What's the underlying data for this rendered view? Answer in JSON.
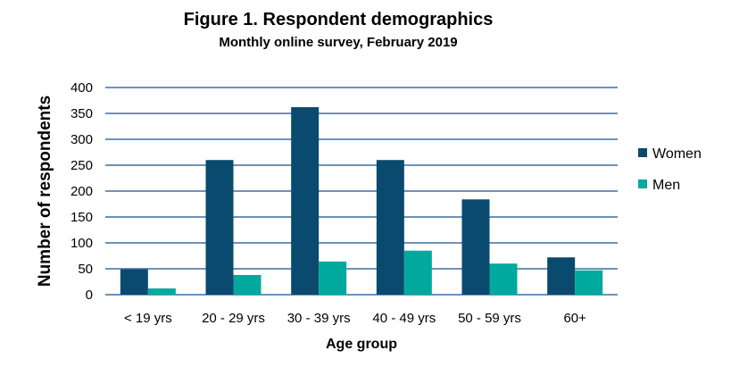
{
  "chart_data": {
    "type": "bar",
    "title": "Figure 1. Respondent demographics",
    "subtitle": "Monthly online survey, February 2019",
    "xlabel": "Age group",
    "ylabel": "Number of respondents",
    "categories": [
      "< 19 yrs",
      "20 - 29 yrs",
      "30 - 39 yrs",
      "40 - 49 yrs",
      "50 - 59 yrs",
      "60+"
    ],
    "series": [
      {
        "name": "Women",
        "color": "#0b4a6f",
        "values": [
          49,
          260,
          362,
          260,
          184,
          72
        ]
      },
      {
        "name": "Men",
        "color": "#00a99d",
        "values": [
          12,
          38,
          64,
          85,
          60,
          47
        ]
      }
    ],
    "ylim": [
      0,
      400
    ],
    "yticks": [
      0,
      50,
      100,
      150,
      200,
      250,
      300,
      350,
      400
    ],
    "grid": true,
    "legend_position": "right"
  }
}
